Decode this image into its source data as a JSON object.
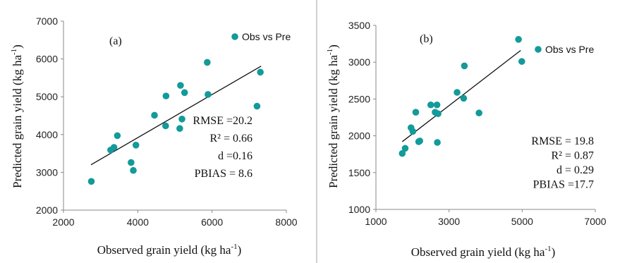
{
  "marker_color": "#139a9a",
  "chart_data": [
    {
      "type": "scatter",
      "panel_label": "(a)",
      "xlabel": "Observed grain yield (kg ha",
      "ylabel": "Predicted grain yield (kg ha",
      "unit_sup": "-1",
      "close_paren": ")",
      "xlim": [
        2000,
        8000
      ],
      "ylim": [
        2000,
        7000
      ],
      "xticks": [
        "2000",
        "4000",
        "6000",
        "8000"
      ],
      "yticks": [
        "2000",
        "3000",
        "4000",
        "5000",
        "6000",
        "7000"
      ],
      "legend": "Obs vs Pre",
      "trendline": {
        "x": [
          2740,
          7320
        ],
        "y": [
          3200,
          5810
        ]
      },
      "stats": [
        "RMSE =20.2",
        "R² = 0.66",
        "d =0.16",
        "PBIAS = 8.6"
      ],
      "series": [
        {
          "name": "Obs vs Pre",
          "points": [
            [
              2750,
              2760
            ],
            [
              3270,
              3590
            ],
            [
              3360,
              3660
            ],
            [
              3450,
              3970
            ],
            [
              3820,
              3260
            ],
            [
              3880,
              3050
            ],
            [
              3950,
              3720
            ],
            [
              4450,
              4510
            ],
            [
              4750,
              4230
            ],
            [
              4760,
              5020
            ],
            [
              5130,
              4160
            ],
            [
              5150,
              5300
            ],
            [
              5190,
              4410
            ],
            [
              5260,
              5110
            ],
            [
              5870,
              5910
            ],
            [
              5890,
              5060
            ],
            [
              7210,
              4750
            ],
            [
              7300,
              5650
            ]
          ]
        }
      ]
    },
    {
      "type": "scatter",
      "panel_label": "(b)",
      "xlabel": "Observed grain yield (kg ha",
      "ylabel": "Predicted grain yield (kg ha",
      "unit_sup": "-1",
      "close_paren": ")",
      "xlim": [
        1000,
        7000
      ],
      "ylim": [
        1000,
        3500
      ],
      "xticks": [
        "1000",
        "3000",
        "5000",
        "7000"
      ],
      "yticks": [
        "1000",
        "1500",
        "2000",
        "2500",
        "3000",
        "3500"
      ],
      "legend": "Obs vs Pre",
      "trendline": {
        "x": [
          1720,
          4960
        ],
        "y": [
          1920,
          3160
        ]
      },
      "stats": [
        "RMSE = 19.8",
        "R² = 0.87",
        "d = 0.29",
        "PBIAS =17.7"
      ],
      "series": [
        {
          "name": "Obs vs Pre",
          "points": [
            [
              1720,
              1760
            ],
            [
              1800,
              1830
            ],
            [
              1960,
              2110
            ],
            [
              2010,
              2060
            ],
            [
              2090,
              2320
            ],
            [
              2170,
              1920
            ],
            [
              2200,
              1930
            ],
            [
              2500,
              2420
            ],
            [
              2620,
              2320
            ],
            [
              2670,
              2420
            ],
            [
              2700,
              2300
            ],
            [
              2680,
              1910
            ],
            [
              3220,
              2590
            ],
            [
              3400,
              2510
            ],
            [
              3420,
              2950
            ],
            [
              3820,
              2310
            ],
            [
              4900,
              3310
            ],
            [
              4990,
              3010
            ]
          ]
        }
      ]
    }
  ]
}
